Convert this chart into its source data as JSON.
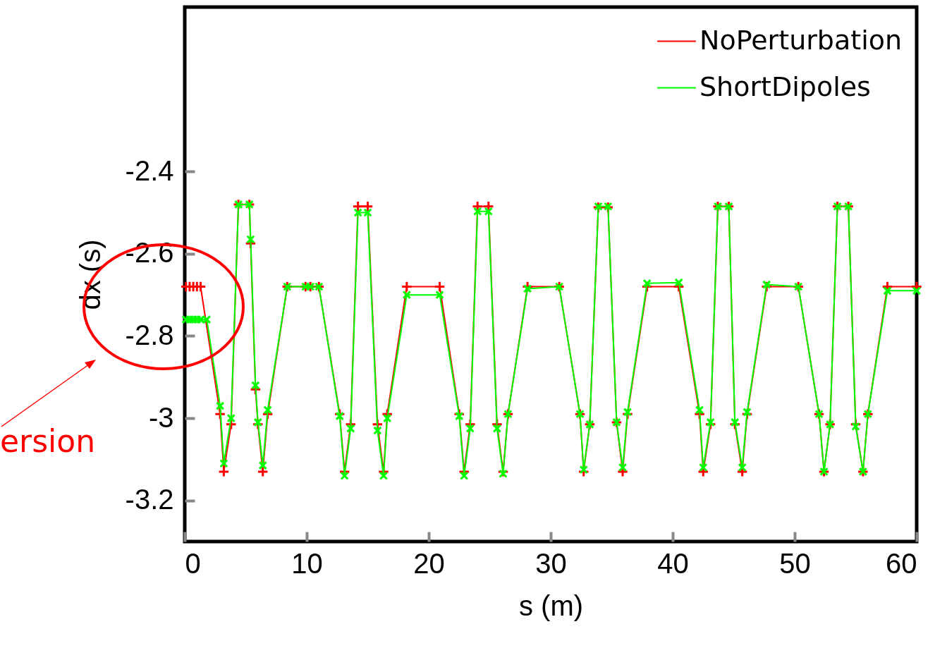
{
  "chart_data": {
    "type": "line",
    "xlabel": "s (m)",
    "ylabel": "dx (s)",
    "xlim": [
      0,
      60
    ],
    "ylim": [
      -3.3,
      -2.0
    ],
    "xticks": [
      0,
      10,
      20,
      30,
      40,
      50,
      60
    ],
    "yticks": [
      -3.2,
      -3,
      -2.8,
      -2.6,
      -2.4
    ],
    "grid": false,
    "legend": "top right",
    "marker": "cross",
    "annotations": [
      "ersion"
    ],
    "series": [
      {
        "name": "NoPerturbation",
        "color": "#ff0000",
        "x": [
          0.1,
          0.4,
          0.7,
          1.0,
          1.3,
          2.9,
          3.2,
          3.8,
          4.4,
          5.3,
          5.4,
          5.8,
          6.0,
          6.4,
          6.8,
          8.4,
          9.9,
          10.3,
          11.0,
          12.7,
          13.1,
          13.6,
          14.2,
          15.0,
          15.8,
          16.3,
          16.6,
          18.2,
          20.9,
          22.5,
          22.9,
          23.4,
          24.0,
          24.9,
          25.6,
          26.1,
          26.5,
          28.1,
          30.7,
          32.4,
          32.7,
          33.2,
          33.9,
          34.7,
          35.4,
          35.9,
          36.3,
          37.9,
          40.5,
          42.2,
          42.5,
          43.1,
          43.7,
          44.6,
          45.1,
          45.7,
          46.1,
          47.7,
          50.3,
          52.0,
          52.4,
          52.9,
          53.5,
          54.4,
          55.0,
          55.6,
          56.0,
          57.6,
          60
        ],
        "values": [
          -2.68,
          -2.68,
          -2.68,
          -2.68,
          -2.68,
          -2.99,
          -3.13,
          -3.015,
          -2.48,
          -2.48,
          -2.575,
          -2.93,
          -3.015,
          -3.13,
          -2.99,
          -2.68,
          -2.68,
          -2.68,
          -2.68,
          -2.99,
          -3.13,
          -3.015,
          -2.485,
          -2.485,
          -3.015,
          -3.13,
          -2.99,
          -2.68,
          -2.68,
          -2.99,
          -3.13,
          -3.015,
          -2.485,
          -2.485,
          -3.015,
          -3.13,
          -2.99,
          -2.68,
          -2.68,
          -2.99,
          -3.13,
          -3.015,
          -2.487,
          -2.487,
          -3.01,
          -3.13,
          -2.99,
          -2.68,
          -2.68,
          -2.99,
          -3.13,
          -3.015,
          -2.485,
          -2.485,
          -3.015,
          -3.13,
          -2.99,
          -2.68,
          -2.68,
          -2.99,
          -3.13,
          -3.015,
          -2.485,
          -2.485,
          -3.015,
          -3.13,
          -2.99,
          -2.68,
          -2.68
        ]
      },
      {
        "name": "ShortDipoles",
        "color": "#00ff00",
        "x": [
          0.1,
          0.4,
          0.7,
          1.0,
          1.3,
          1.8,
          2.9,
          3.2,
          3.8,
          4.4,
          5.3,
          5.4,
          5.8,
          6.0,
          6.4,
          6.8,
          8.4,
          9.9,
          10.3,
          11.0,
          12.7,
          13.1,
          13.6,
          14.2,
          15.0,
          15.8,
          16.3,
          16.6,
          18.2,
          20.9,
          22.5,
          22.9,
          23.4,
          24.0,
          24.9,
          25.6,
          26.1,
          26.5,
          28.1,
          30.7,
          32.4,
          32.7,
          33.2,
          33.9,
          34.7,
          35.4,
          35.9,
          36.3,
          37.9,
          40.5,
          42.2,
          42.5,
          43.1,
          43.7,
          44.6,
          45.1,
          45.7,
          46.1,
          47.7,
          50.3,
          52.0,
          52.4,
          52.9,
          53.5,
          54.4,
          55.0,
          55.6,
          56.0,
          57.6,
          60
        ],
        "values": [
          -2.76,
          -2.76,
          -2.76,
          -2.76,
          -2.76,
          -2.76,
          -2.97,
          -3.11,
          -3.0,
          -2.48,
          -2.48,
          -2.565,
          -2.92,
          -3.01,
          -3.115,
          -2.98,
          -2.68,
          -2.68,
          -2.68,
          -2.68,
          -2.995,
          -3.14,
          -3.025,
          -2.5,
          -2.5,
          -3.03,
          -3.14,
          -3.0,
          -2.7,
          -2.7,
          -2.995,
          -3.14,
          -3.025,
          -2.497,
          -2.497,
          -3.025,
          -3.135,
          -2.99,
          -2.685,
          -2.68,
          -2.99,
          -3.125,
          -3.015,
          -2.485,
          -2.485,
          -3.01,
          -3.12,
          -2.985,
          -2.672,
          -2.67,
          -2.98,
          -3.12,
          -3.01,
          -2.485,
          -2.485,
          -3.01,
          -3.12,
          -2.985,
          -2.675,
          -2.68,
          -2.99,
          -3.13,
          -3.015,
          -2.485,
          -2.485,
          -3.02,
          -3.13,
          -2.99,
          -2.69,
          -2.69
        ]
      }
    ]
  }
}
